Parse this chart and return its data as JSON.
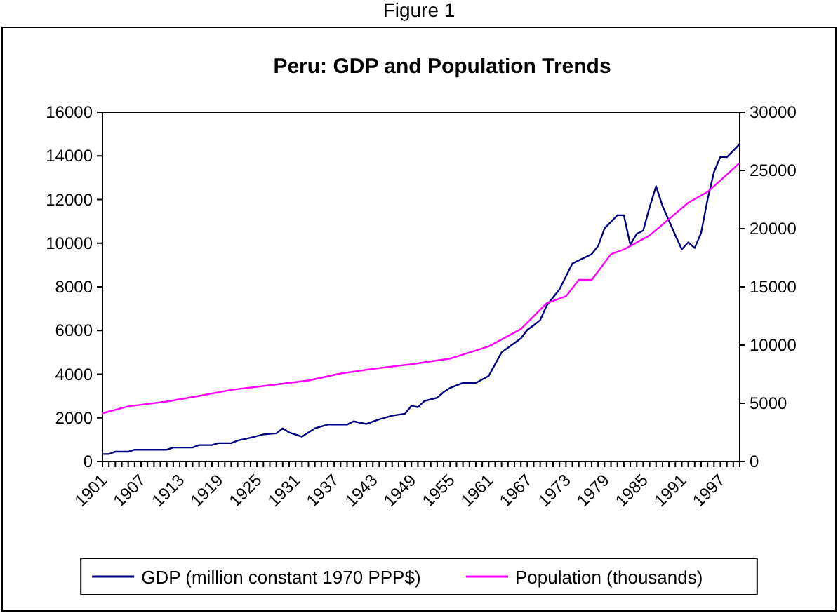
{
  "chart_data": {
    "type": "line",
    "title": "Peru: GDP and Population Trends",
    "annotations": [
      "Figure 1"
    ],
    "xlim": [
      1901,
      2000
    ],
    "xticks": [
      1901,
      1907,
      1913,
      1919,
      1925,
      1931,
      1937,
      1943,
      1949,
      1955,
      1961,
      1967,
      1973,
      1979,
      1985,
      1991,
      1997
    ],
    "ylim": [
      0,
      16000
    ],
    "yticks": [
      0,
      2000,
      4000,
      6000,
      8000,
      10000,
      12000,
      14000,
      16000
    ],
    "y2lim": [
      0,
      30000
    ],
    "y2ticks": [
      0,
      5000,
      10000,
      15000,
      20000,
      25000,
      30000
    ],
    "legend": "bottom",
    "grid": false,
    "series": [
      {
        "name": "GDP (million constant 1970 PPP$)",
        "color": "#000080",
        "x": [
          1901,
          1902,
          1903,
          1905,
          1906,
          1911,
          1912,
          1915,
          1916,
          1918,
          1919,
          1921,
          1922,
          1924,
          1926,
          1928,
          1929,
          1930,
          1932,
          1934,
          1936,
          1939,
          1940,
          1942,
          1944,
          1946,
          1948,
          1949,
          1950,
          1951,
          1953,
          1954,
          1955,
          1957,
          1959,
          1961,
          1962,
          1963,
          1964,
          1966,
          1967,
          1968,
          1969,
          1970,
          1972,
          1974,
          1977,
          1978,
          1979,
          1981,
          1982,
          1983,
          1984,
          1985,
          1986,
          1987,
          1988,
          1990,
          1991,
          1992,
          1993,
          1994,
          1995,
          1996,
          1997,
          1998,
          2000
        ],
        "values": [
          340,
          340,
          450,
          450,
          540,
          540,
          640,
          640,
          750,
          750,
          840,
          840,
          960,
          1090,
          1240,
          1290,
          1520,
          1330,
          1140,
          1520,
          1690,
          1690,
          1840,
          1720,
          1930,
          2100,
          2190,
          2550,
          2490,
          2770,
          2920,
          3180,
          3370,
          3600,
          3600,
          3920,
          4460,
          5000,
          5210,
          5640,
          6030,
          6240,
          6480,
          7140,
          7890,
          9070,
          9500,
          9870,
          10680,
          11280,
          11280,
          9930,
          10430,
          10580,
          11650,
          12610,
          11710,
          10360,
          9720,
          10040,
          9780,
          10470,
          12000,
          13260,
          13960,
          13940,
          14540
        ]
      },
      {
        "name": "Population (thousands)",
        "color": "#ff00ff",
        "axis": "y2",
        "x": [
          1901,
          1905,
          1911,
          1916,
          1921,
          1927,
          1933,
          1938,
          1943,
          1949,
          1955,
          1961,
          1966,
          1970,
          1973,
          1975,
          1977,
          1980,
          1982,
          1986,
          1989,
          1992,
          1995,
          1998,
          2000
        ],
        "values": [
          4140,
          4740,
          5150,
          5630,
          6150,
          6550,
          6960,
          7560,
          7960,
          8360,
          8840,
          9890,
          11380,
          13590,
          14190,
          15600,
          15600,
          17810,
          18210,
          19420,
          20820,
          22230,
          23160,
          24640,
          25650
        ]
      }
    ]
  }
}
